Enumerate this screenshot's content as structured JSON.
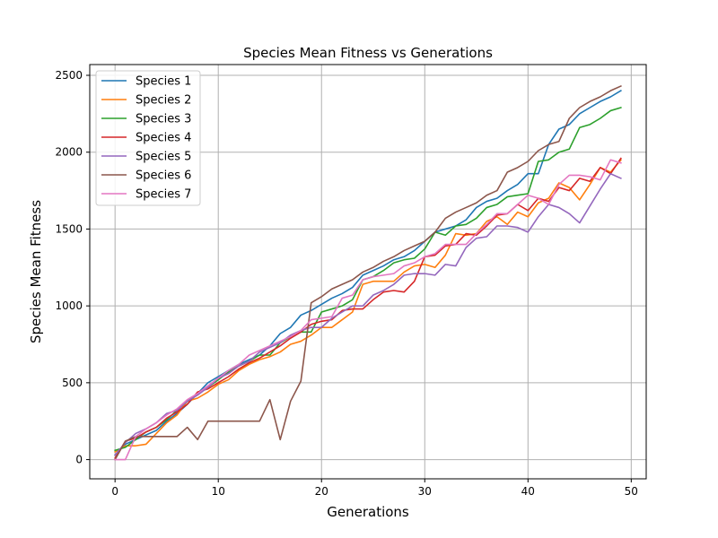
{
  "chart_data": {
    "type": "line",
    "title": "Species Mean Fitness vs Generations",
    "xlabel": "Generations",
    "ylabel": "Species Mean Fitness",
    "xlim": [
      -2.45,
      51.45
    ],
    "ylim": [
      -125,
      2570
    ],
    "xticks": [
      0,
      10,
      20,
      30,
      40,
      50
    ],
    "yticks": [
      0,
      500,
      1000,
      1500,
      2000,
      2500
    ],
    "grid": true,
    "legend_position": "top-left",
    "x": [
      0,
      1,
      2,
      3,
      4,
      5,
      6,
      7,
      8,
      9,
      10,
      11,
      12,
      13,
      14,
      15,
      16,
      17,
      18,
      19,
      20,
      21,
      22,
      23,
      24,
      25,
      26,
      27,
      28,
      29,
      30,
      31,
      32,
      33,
      34,
      35,
      36,
      37,
      38,
      39,
      40,
      41,
      42,
      43,
      44,
      45,
      46,
      47,
      48,
      49
    ],
    "series": [
      {
        "name": "Species 1",
        "color": "#1f77b4",
        "values": [
          30,
          100,
          130,
          160,
          190,
          250,
          300,
          360,
          430,
          500,
          540,
          580,
          620,
          650,
          680,
          740,
          820,
          860,
          940,
          970,
          1010,
          1050,
          1080,
          1120,
          1200,
          1230,
          1260,
          1300,
          1320,
          1360,
          1420,
          1480,
          1500,
          1520,
          1560,
          1640,
          1680,
          1700,
          1750,
          1790,
          1860,
          1860,
          2050,
          2150,
          2180,
          2250,
          2290,
          2330,
          2360,
          2400
        ]
      },
      {
        "name": "Species 2",
        "color": "#ff7f0e",
        "values": [
          50,
          90,
          90,
          100,
          170,
          240,
          290,
          380,
          400,
          440,
          490,
          520,
          580,
          620,
          650,
          670,
          700,
          750,
          770,
          810,
          860,
          860,
          910,
          960,
          1140,
          1160,
          1160,
          1160,
          1220,
          1260,
          1270,
          1250,
          1330,
          1470,
          1460,
          1470,
          1550,
          1580,
          1530,
          1610,
          1580,
          1670,
          1700,
          1800,
          1770,
          1690,
          1790,
          1900,
          1870,
          1950
        ]
      },
      {
        "name": "Species 3",
        "color": "#2ca02c",
        "values": [
          60,
          80,
          130,
          180,
          210,
          260,
          320,
          380,
          430,
          470,
          520,
          570,
          610,
          640,
          680,
          680,
          760,
          800,
          830,
          830,
          960,
          980,
          1000,
          1040,
          1170,
          1190,
          1230,
          1280,
          1300,
          1310,
          1370,
          1480,
          1460,
          1520,
          1530,
          1570,
          1640,
          1660,
          1710,
          1720,
          1730,
          1940,
          1950,
          2000,
          2020,
          2160,
          2180,
          2220,
          2270,
          2290
        ]
      },
      {
        "name": "Species 4",
        "color": "#d62728",
        "values": [
          10,
          120,
          140,
          180,
          210,
          270,
          310,
          360,
          440,
          460,
          500,
          540,
          590,
          630,
          660,
          700,
          740,
          790,
          830,
          880,
          900,
          910,
          970,
          980,
          980,
          1040,
          1090,
          1100,
          1090,
          1160,
          1320,
          1330,
          1390,
          1400,
          1470,
          1460,
          1520,
          1590,
          1600,
          1660,
          1620,
          1700,
          1680,
          1770,
          1750,
          1830,
          1810,
          1900,
          1860,
          1960
        ]
      },
      {
        "name": "Species 5",
        "color": "#9467bd",
        "values": [
          30,
          110,
          170,
          200,
          240,
          300,
          320,
          380,
          420,
          470,
          530,
          560,
          610,
          640,
          700,
          730,
          760,
          810,
          840,
          860,
          860,
          920,
          960,
          1000,
          1000,
          1070,
          1100,
          1140,
          1200,
          1210,
          1210,
          1200,
          1270,
          1260,
          1380,
          1440,
          1450,
          1520,
          1520,
          1510,
          1480,
          1580,
          1660,
          1640,
          1600,
          1540,
          1650,
          1760,
          1860,
          1830
        ]
      },
      {
        "name": "Species 6",
        "color": "#8c564b",
        "values": [
          0,
          120,
          150,
          150,
          150,
          150,
          150,
          210,
          130,
          250,
          250,
          250,
          250,
          250,
          250,
          390,
          130,
          380,
          510,
          1020,
          1060,
          1110,
          1140,
          1170,
          1220,
          1250,
          1290,
          1320,
          1360,
          1390,
          1420,
          1480,
          1570,
          1610,
          1640,
          1670,
          1720,
          1750,
          1870,
          1900,
          1940,
          2010,
          2050,
          2070,
          2220,
          2290,
          2330,
          2360,
          2400,
          2430
        ]
      },
      {
        "name": "Species 7",
        "color": "#e377c2",
        "values": [
          0,
          0,
          150,
          200,
          240,
          290,
          330,
          390,
          430,
          480,
          530,
          580,
          620,
          680,
          710,
          740,
          770,
          800,
          840,
          910,
          920,
          930,
          1050,
          1070,
          1170,
          1190,
          1200,
          1210,
          1260,
          1280,
          1320,
          1340,
          1400,
          1400,
          1400,
          1470,
          1530,
          1600,
          1600,
          1660,
          1720,
          1700,
          1660,
          1790,
          1850,
          1850,
          1840,
          1820,
          1950,
          1930
        ]
      }
    ]
  }
}
